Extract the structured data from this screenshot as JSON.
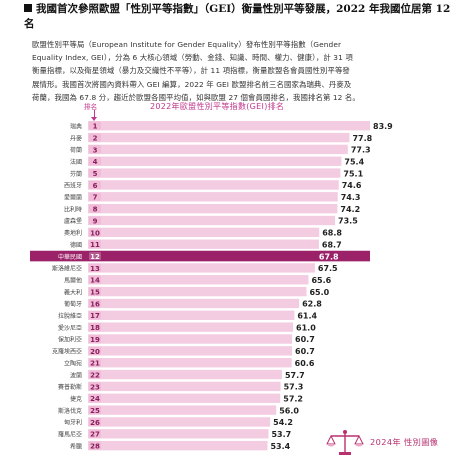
{
  "heading": "我國首次參照歐盟「性別平等指數」（GEI）衡量性別平等發展，2022 年我國位居第 12 名",
  "paragraph_lines": [
    "歐盟性別平等局（European Institute for Gender Equality）發布性別平等指數（Gender",
    "Equality Index, GEI），分為 6 大核心領域（勞動、金錢、知識、時間、權力、健康），計 31 項",
    "衡量指標，以及衛星領域（暴力及交織性不平等），計 11 項指標，衡量歐盟各會員國性別平等發",
    "展情形。我國首次將國內資料帶入 GEI 編算，2022 年 GEI 歐盟排名前三名國家為瑞典、丹麥及",
    "荷蘭，我國為 67.8 分，趨近於歐盟各國平均值，如與歐盟 27 個會員國排名，我國排名第 12 名。"
  ],
  "footer_label": "2024年 性別圖像",
  "colors": {
    "accent": "#c2378e",
    "bar_light": "#f3cce2",
    "bar_highlight": "#9b2168",
    "rank_box": "#f0bcd8"
  },
  "chart_data": {
    "type": "bar",
    "orientation": "horizontal",
    "title": "2022年歐盟性別平等指數(GEI)排名",
    "rank_label": "排名",
    "highlight_index": 11,
    "categories": [
      "瑞典",
      "丹麥",
      "荷蘭",
      "法國",
      "芬蘭",
      "西班牙",
      "愛爾蘭",
      "比利時",
      "盧森堡",
      "奧地利",
      "德國",
      "中華民國",
      "斯洛維尼亞",
      "馬爾他",
      "義大利",
      "葡萄牙",
      "拉脫維亞",
      "愛沙尼亞",
      "保加利亞",
      "克羅埃西亞",
      "立陶宛",
      "波蘭",
      "賽普勒斯",
      "捷克",
      "斯洛伐克",
      "匈牙利",
      "羅馬尼亞",
      "希臘"
    ],
    "ranks": [
      "1",
      "2",
      "3",
      "4",
      "5",
      "6",
      "7",
      "8",
      "9",
      "10",
      "11",
      "12",
      "13",
      "14",
      "15",
      "16",
      "17",
      "18",
      "19",
      "20",
      "21",
      "22",
      "23",
      "24",
      "25",
      "26",
      "27",
      "28"
    ],
    "values": [
      83.9,
      77.8,
      77.3,
      75.4,
      75.1,
      74.6,
      74.3,
      74.2,
      73.5,
      68.8,
      68.7,
      67.8,
      67.5,
      65.6,
      65.0,
      62.8,
      61.4,
      61.0,
      60.7,
      60.7,
      60.6,
      57.7,
      57.3,
      57.2,
      56.0,
      54.2,
      53.7,
      53.4
    ],
    "value_labels": [
      "83.9",
      "77.8",
      "77.3",
      "75.4",
      "75.1",
      "74.6",
      "74.3",
      "74.2",
      "73.5",
      "68.8",
      "68.7",
      "67.8",
      "67.5",
      "65.6",
      "65.0",
      "62.8",
      "61.4",
      "61.0",
      "60.7",
      "60.7",
      "60.6",
      "57.7",
      "57.3",
      "57.2",
      "56.0",
      "54.2",
      "53.7",
      "53.4"
    ],
    "xlim": [
      0,
      83.9
    ],
    "grid": false,
    "legend": "none"
  }
}
